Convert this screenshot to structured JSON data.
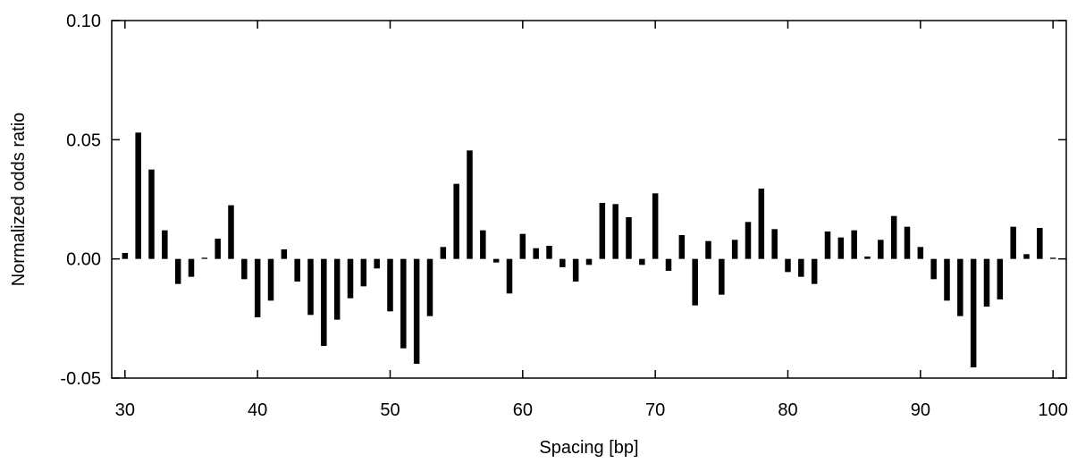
{
  "chart_data": {
    "type": "bar",
    "title": "",
    "xlabel": "Spacing [bp]",
    "ylabel": "Normalized odds ratio",
    "xlim": [
      29,
      101
    ],
    "ylim": [
      -0.05,
      0.1
    ],
    "x_ticks": [
      30,
      40,
      50,
      60,
      70,
      80,
      90,
      100
    ],
    "y_ticks": [
      -0.05,
      0.0,
      0.05,
      0.1
    ],
    "y_tick_labels": [
      "-0.05",
      "0.00",
      "0.05",
      "0.10"
    ],
    "x_tick_labels": [
      "30",
      "40",
      "50",
      "60",
      "70",
      "80",
      "90",
      "100"
    ],
    "grid": false,
    "bar_color": "#000000",
    "x": [
      30,
      31,
      32,
      33,
      34,
      35,
      36,
      37,
      38,
      39,
      40,
      41,
      42,
      43,
      44,
      45,
      46,
      47,
      48,
      49,
      50,
      51,
      52,
      53,
      54,
      55,
      56,
      57,
      58,
      59,
      60,
      61,
      62,
      63,
      64,
      65,
      66,
      67,
      68,
      69,
      70,
      71,
      72,
      73,
      74,
      75,
      76,
      77,
      78,
      79,
      80,
      81,
      82,
      83,
      84,
      85,
      86,
      87,
      88,
      89,
      90,
      91,
      92,
      93,
      94,
      95,
      96,
      97,
      98,
      99,
      100
    ],
    "values": [
      0.0025,
      0.053,
      0.0375,
      0.012,
      -0.0105,
      -0.0075,
      0.0005,
      0.0085,
      0.0225,
      -0.0085,
      -0.0245,
      -0.0175,
      0.004,
      -0.0095,
      -0.0235,
      -0.0365,
      -0.0255,
      -0.0165,
      -0.0115,
      -0.004,
      -0.022,
      -0.0375,
      -0.044,
      -0.024,
      0.005,
      0.0315,
      0.0455,
      0.012,
      -0.0015,
      -0.0145,
      0.0105,
      0.0045,
      0.0055,
      -0.0035,
      -0.0095,
      -0.0025,
      0.0235,
      0.023,
      0.0175,
      -0.0025,
      0.0275,
      -0.005,
      0.01,
      -0.0195,
      0.0075,
      -0.015,
      0.008,
      0.0155,
      0.0295,
      0.0125,
      -0.0055,
      -0.0075,
      -0.0105,
      0.0115,
      0.009,
      0.012,
      0.001,
      0.008,
      0.018,
      0.0135,
      0.005,
      -0.0085,
      -0.0175,
      -0.024,
      -0.0455,
      -0.02,
      -0.017,
      0.0135,
      0.002,
      0.013,
      0.0005
    ]
  }
}
